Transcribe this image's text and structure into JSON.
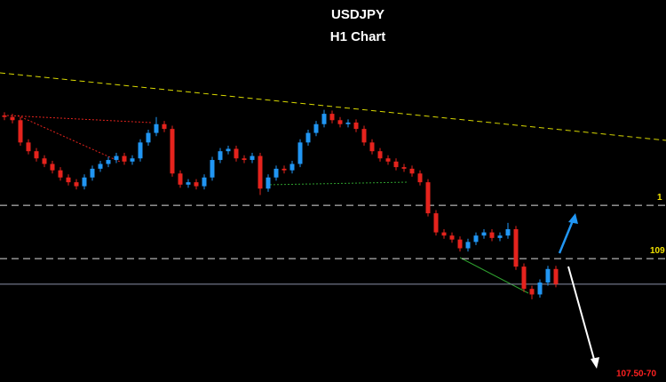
{
  "chart_data": {
    "type": "candlestick",
    "title": "USDJPY",
    "subtitle": "H1 Chart",
    "up_color": "#2196f3",
    "down_color": "#e5231d",
    "ylim": [
      107.45,
      112.25
    ],
    "open": [
      110.8,
      110.78,
      110.74,
      110.46,
      110.35,
      110.26,
      110.19,
      110.11,
      110.02,
      109.96,
      109.91,
      110.02,
      110.13,
      110.19,
      110.24,
      110.29,
      110.22,
      110.26,
      110.46,
      110.58,
      110.69,
      110.63,
      110.07,
      109.93,
      109.96,
      109.91,
      110.02,
      110.24,
      110.35,
      110.38,
      110.26,
      110.24,
      110.29,
      109.88,
      110.02,
      110.13,
      110.11,
      110.19,
      110.46,
      110.58,
      110.69,
      110.82,
      110.74,
      110.69,
      110.71,
      110.63,
      110.46,
      110.35,
      110.26,
      110.22,
      110.15,
      110.13,
      110.07,
      109.96,
      109.57,
      109.33,
      109.29,
      109.24,
      109.13,
      109.21,
      109.29,
      109.33,
      109.26,
      109.29,
      109.37,
      108.9,
      108.62,
      108.55,
      108.7,
      108.87
    ],
    "high": [
      110.84,
      110.82,
      110.78,
      110.5,
      110.39,
      110.3,
      110.23,
      110.15,
      110.06,
      110.0,
      110.06,
      110.17,
      110.23,
      110.28,
      110.33,
      110.33,
      110.3,
      110.5,
      110.62,
      110.78,
      110.73,
      110.67,
      110.11,
      110.0,
      110.0,
      110.06,
      110.28,
      110.39,
      110.42,
      110.42,
      110.3,
      110.33,
      110.33,
      110.06,
      110.17,
      110.17,
      110.23,
      110.5,
      110.62,
      110.73,
      110.87,
      110.86,
      110.78,
      110.75,
      110.75,
      110.67,
      110.5,
      110.39,
      110.3,
      110.26,
      110.19,
      110.17,
      110.11,
      110.0,
      109.61,
      109.37,
      109.33,
      109.28,
      109.25,
      109.33,
      109.37,
      109.37,
      109.33,
      109.45,
      109.41,
      108.94,
      108.66,
      108.74,
      108.91,
      108.91
    ],
    "low": [
      110.74,
      110.7,
      110.42,
      110.31,
      110.22,
      110.15,
      110.07,
      109.98,
      109.92,
      109.87,
      109.87,
      109.98,
      110.09,
      110.15,
      110.2,
      110.18,
      110.18,
      110.22,
      110.42,
      110.54,
      110.59,
      110.03,
      109.89,
      109.89,
      109.87,
      109.87,
      109.98,
      110.2,
      110.31,
      110.22,
      110.2,
      110.2,
      109.8,
      109.84,
      109.98,
      110.07,
      110.07,
      110.15,
      110.42,
      110.54,
      110.65,
      110.7,
      110.65,
      110.65,
      110.59,
      110.42,
      110.31,
      110.22,
      110.18,
      110.11,
      110.09,
      110.03,
      109.92,
      109.53,
      109.29,
      109.25,
      109.2,
      109.09,
      109.09,
      109.17,
      109.25,
      109.22,
      109.22,
      109.25,
      108.86,
      108.58,
      108.49,
      108.51,
      108.66,
      108.64
    ],
    "close": [
      110.78,
      110.74,
      110.46,
      110.35,
      110.26,
      110.19,
      110.11,
      110.02,
      109.96,
      109.91,
      110.02,
      110.13,
      110.19,
      110.24,
      110.29,
      110.22,
      110.26,
      110.46,
      110.58,
      110.69,
      110.63,
      110.07,
      109.93,
      109.96,
      109.91,
      110.02,
      110.24,
      110.35,
      110.38,
      110.26,
      110.24,
      110.29,
      109.88,
      110.02,
      110.13,
      110.11,
      110.19,
      110.46,
      110.58,
      110.69,
      110.82,
      110.74,
      110.69,
      110.71,
      110.63,
      110.46,
      110.35,
      110.26,
      110.22,
      110.15,
      110.13,
      110.07,
      109.96,
      109.57,
      109.33,
      109.29,
      109.24,
      109.13,
      109.21,
      109.29,
      109.33,
      109.26,
      109.29,
      109.37,
      108.9,
      108.62,
      108.55,
      108.7,
      108.87,
      108.68
    ],
    "levels": [
      109.67,
      109.0
    ],
    "level_labels": [
      "1",
      "109"
    ],
    "target_label": "107.50-70"
  }
}
